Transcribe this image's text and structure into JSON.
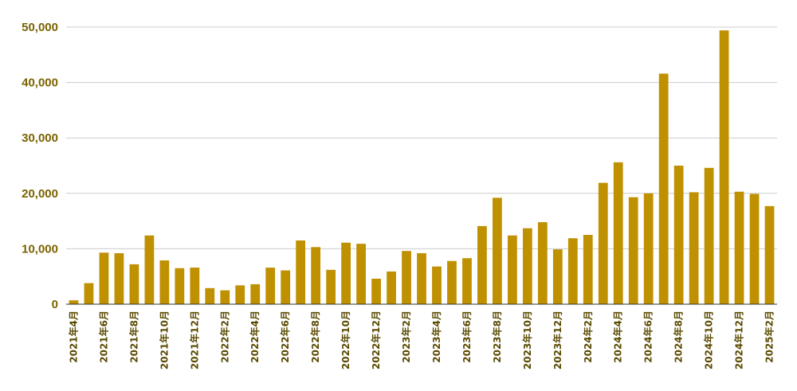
{
  "chart_data": {
    "type": "bar",
    "title": "",
    "xlabel": "",
    "ylabel": "",
    "ylim": [
      0,
      50000
    ],
    "yticks": [
      0,
      10000,
      20000,
      30000,
      40000,
      50000
    ],
    "ytick_labels": [
      "0",
      "10,000",
      "20,000",
      "30,000",
      "40,000",
      "50,000"
    ],
    "grid": true,
    "bar_color": "#bf9000",
    "label_color": "#7a6300",
    "categories": [
      "2021年4月",
      "2021年5月",
      "2021年6月",
      "2021年7月",
      "2021年8月",
      "2021年9月",
      "2021年10月",
      "2021年11月",
      "2021年12月",
      "2022年1月",
      "2022年2月",
      "2022年3月",
      "2022年4月",
      "2022年5月",
      "2022年6月",
      "2022年7月",
      "2022年8月",
      "2022年9月",
      "2022年10月",
      "2022年11月",
      "2022年12月",
      "2023年1月",
      "2023年2月",
      "2023年3月",
      "2023年4月",
      "2023年5月",
      "2023年6月",
      "2023年7月",
      "2023年8月",
      "2023年9月",
      "2023年10月",
      "2023年11月",
      "2023年12月",
      "2024年1月",
      "2024年2月",
      "2024年3月",
      "2024年4月",
      "2024年5月",
      "2024年6月",
      "2024年7月",
      "2024年8月",
      "2024年9月",
      "2024年10月",
      "2024年11月",
      "2024年12月",
      "2025年1月",
      "2025年2月"
    ],
    "shown_tick_labels": [
      "2021年4月",
      "2021年6月",
      "2021年8月",
      "2021年10月",
      "2021年12月",
      "2022年2月",
      "2022年4月",
      "2022年6月",
      "2022年8月",
      "2022年10月",
      "2022年12月",
      "2023年2月",
      "2023年4月",
      "2023年6月",
      "2023年8月",
      "2023年10月",
      "2023年12月",
      "2024年2月",
      "2024年4月",
      "2024年6月",
      "2024年8月",
      "2024年10月",
      "2024年12月",
      "2025年2月"
    ],
    "values": [
      700,
      3800,
      9300,
      9200,
      7200,
      12400,
      7900,
      6500,
      6600,
      2900,
      2500,
      3400,
      3600,
      6600,
      6100,
      11500,
      10300,
      6200,
      11100,
      10900,
      4600,
      5900,
      9600,
      9200,
      6800,
      7800,
      8300,
      14100,
      19200,
      12400,
      13700,
      14800,
      9900,
      11900,
      12500,
      21900,
      25600,
      19300,
      20000,
      41600,
      25000,
      20200,
      24600,
      49400,
      20300,
      19900,
      17700
    ]
  }
}
